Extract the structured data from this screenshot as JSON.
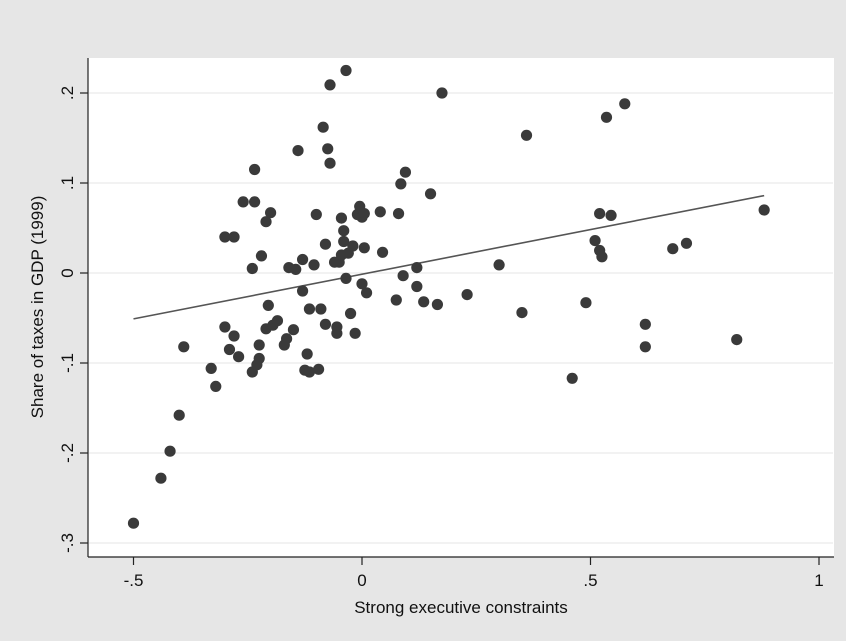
{
  "chart_data": {
    "type": "scatter",
    "xlabel": "Strong executive constraints",
    "ylabel": "Share of taxes in GDP (1999)",
    "xlim": [
      -0.55,
      1.0
    ],
    "ylim": [
      -0.3,
      0.24
    ],
    "x_ticks": [
      {
        "value": -0.5,
        "label": "-.5"
      },
      {
        "value": 0,
        "label": "0"
      },
      {
        "value": 0.5,
        "label": ".5"
      },
      {
        "value": 1,
        "label": "1"
      }
    ],
    "y_ticks": [
      {
        "value": -0.3,
        "label": "-.3"
      },
      {
        "value": -0.2,
        "label": "-.2"
      },
      {
        "value": -0.1,
        "label": "-.1"
      },
      {
        "value": 0,
        "label": "0"
      },
      {
        "value": 0.1,
        "label": ".1"
      },
      {
        "value": 0.2,
        "label": ".2"
      }
    ],
    "grid": "horizontal",
    "fit_line": {
      "x": [
        -0.5,
        0.88
      ],
      "y": [
        -0.051,
        0.086
      ]
    },
    "points": [
      [
        -0.5,
        -0.278
      ],
      [
        -0.44,
        -0.228
      ],
      [
        -0.42,
        -0.198
      ],
      [
        -0.4,
        -0.158
      ],
      [
        -0.39,
        -0.082
      ],
      [
        -0.33,
        -0.106
      ],
      [
        -0.32,
        -0.126
      ],
      [
        -0.3,
        -0.06
      ],
      [
        -0.3,
        0.04
      ],
      [
        -0.29,
        -0.085
      ],
      [
        -0.28,
        0.04
      ],
      [
        -0.28,
        -0.07
      ],
      [
        -0.27,
        -0.093
      ],
      [
        -0.26,
        0.079
      ],
      [
        -0.24,
        0.005
      ],
      [
        -0.24,
        -0.11
      ],
      [
        -0.235,
        0.115
      ],
      [
        -0.235,
        0.079
      ],
      [
        -0.23,
        -0.102
      ],
      [
        -0.225,
        -0.08
      ],
      [
        -0.225,
        -0.095
      ],
      [
        -0.22,
        0.019
      ],
      [
        -0.21,
        -0.062
      ],
      [
        -0.21,
        0.057
      ],
      [
        -0.205,
        -0.036
      ],
      [
        -0.2,
        0.067
      ],
      [
        -0.195,
        -0.058
      ],
      [
        -0.185,
        -0.053
      ],
      [
        -0.17,
        -0.08
      ],
      [
        -0.165,
        -0.073
      ],
      [
        -0.16,
        0.006
      ],
      [
        -0.15,
        -0.063
      ],
      [
        -0.145,
        0.004
      ],
      [
        -0.14,
        0.136
      ],
      [
        -0.13,
        -0.02
      ],
      [
        -0.13,
        0.015
      ],
      [
        -0.125,
        -0.108
      ],
      [
        -0.12,
        -0.09
      ],
      [
        -0.115,
        -0.11
      ],
      [
        -0.115,
        -0.04
      ],
      [
        -0.105,
        0.009
      ],
      [
        -0.1,
        0.065
      ],
      [
        -0.095,
        -0.107
      ],
      [
        -0.09,
        -0.04
      ],
      [
        -0.085,
        0.162
      ],
      [
        -0.08,
        0.032
      ],
      [
        -0.08,
        -0.057
      ],
      [
        -0.075,
        0.138
      ],
      [
        -0.07,
        0.122
      ],
      [
        -0.07,
        0.209
      ],
      [
        -0.06,
        0.012
      ],
      [
        -0.055,
        -0.06
      ],
      [
        -0.055,
        -0.067
      ],
      [
        -0.05,
        0.012
      ],
      [
        -0.045,
        0.061
      ],
      [
        -0.045,
        0.02
      ],
      [
        -0.04,
        0.047
      ],
      [
        -0.04,
        0.035
      ],
      [
        -0.035,
        0.225
      ],
      [
        -0.035,
        -0.006
      ],
      [
        -0.03,
        0.022
      ],
      [
        -0.025,
        -0.045
      ],
      [
        -0.02,
        0.03
      ],
      [
        -0.015,
        -0.067
      ],
      [
        -0.01,
        0.065
      ],
      [
        -0.005,
        0.074
      ],
      [
        0.0,
        0.062
      ],
      [
        0.0,
        -0.012
      ],
      [
        0.005,
        0.028
      ],
      [
        0.005,
        0.066
      ],
      [
        0.01,
        -0.022
      ],
      [
        0.04,
        0.068
      ],
      [
        0.045,
        0.023
      ],
      [
        0.075,
        -0.03
      ],
      [
        0.08,
        0.066
      ],
      [
        0.085,
        0.099
      ],
      [
        0.09,
        -0.003
      ],
      [
        0.095,
        0.112
      ],
      [
        0.12,
        0.006
      ],
      [
        0.12,
        -0.015
      ],
      [
        0.135,
        -0.032
      ],
      [
        0.15,
        0.088
      ],
      [
        0.165,
        -0.035
      ],
      [
        0.175,
        0.2
      ],
      [
        0.23,
        -0.024
      ],
      [
        0.3,
        0.009
      ],
      [
        0.35,
        -0.044
      ],
      [
        0.36,
        0.153
      ],
      [
        0.46,
        -0.117
      ],
      [
        0.49,
        -0.033
      ],
      [
        0.51,
        0.036
      ],
      [
        0.52,
        0.066
      ],
      [
        0.52,
        0.025
      ],
      [
        0.525,
        0.018
      ],
      [
        0.535,
        0.173
      ],
      [
        0.545,
        0.064
      ],
      [
        0.575,
        0.188
      ],
      [
        0.62,
        -0.057
      ],
      [
        0.62,
        -0.082
      ],
      [
        0.68,
        0.027
      ],
      [
        0.71,
        0.033
      ],
      [
        0.82,
        -0.074
      ],
      [
        0.88,
        0.07
      ]
    ]
  }
}
